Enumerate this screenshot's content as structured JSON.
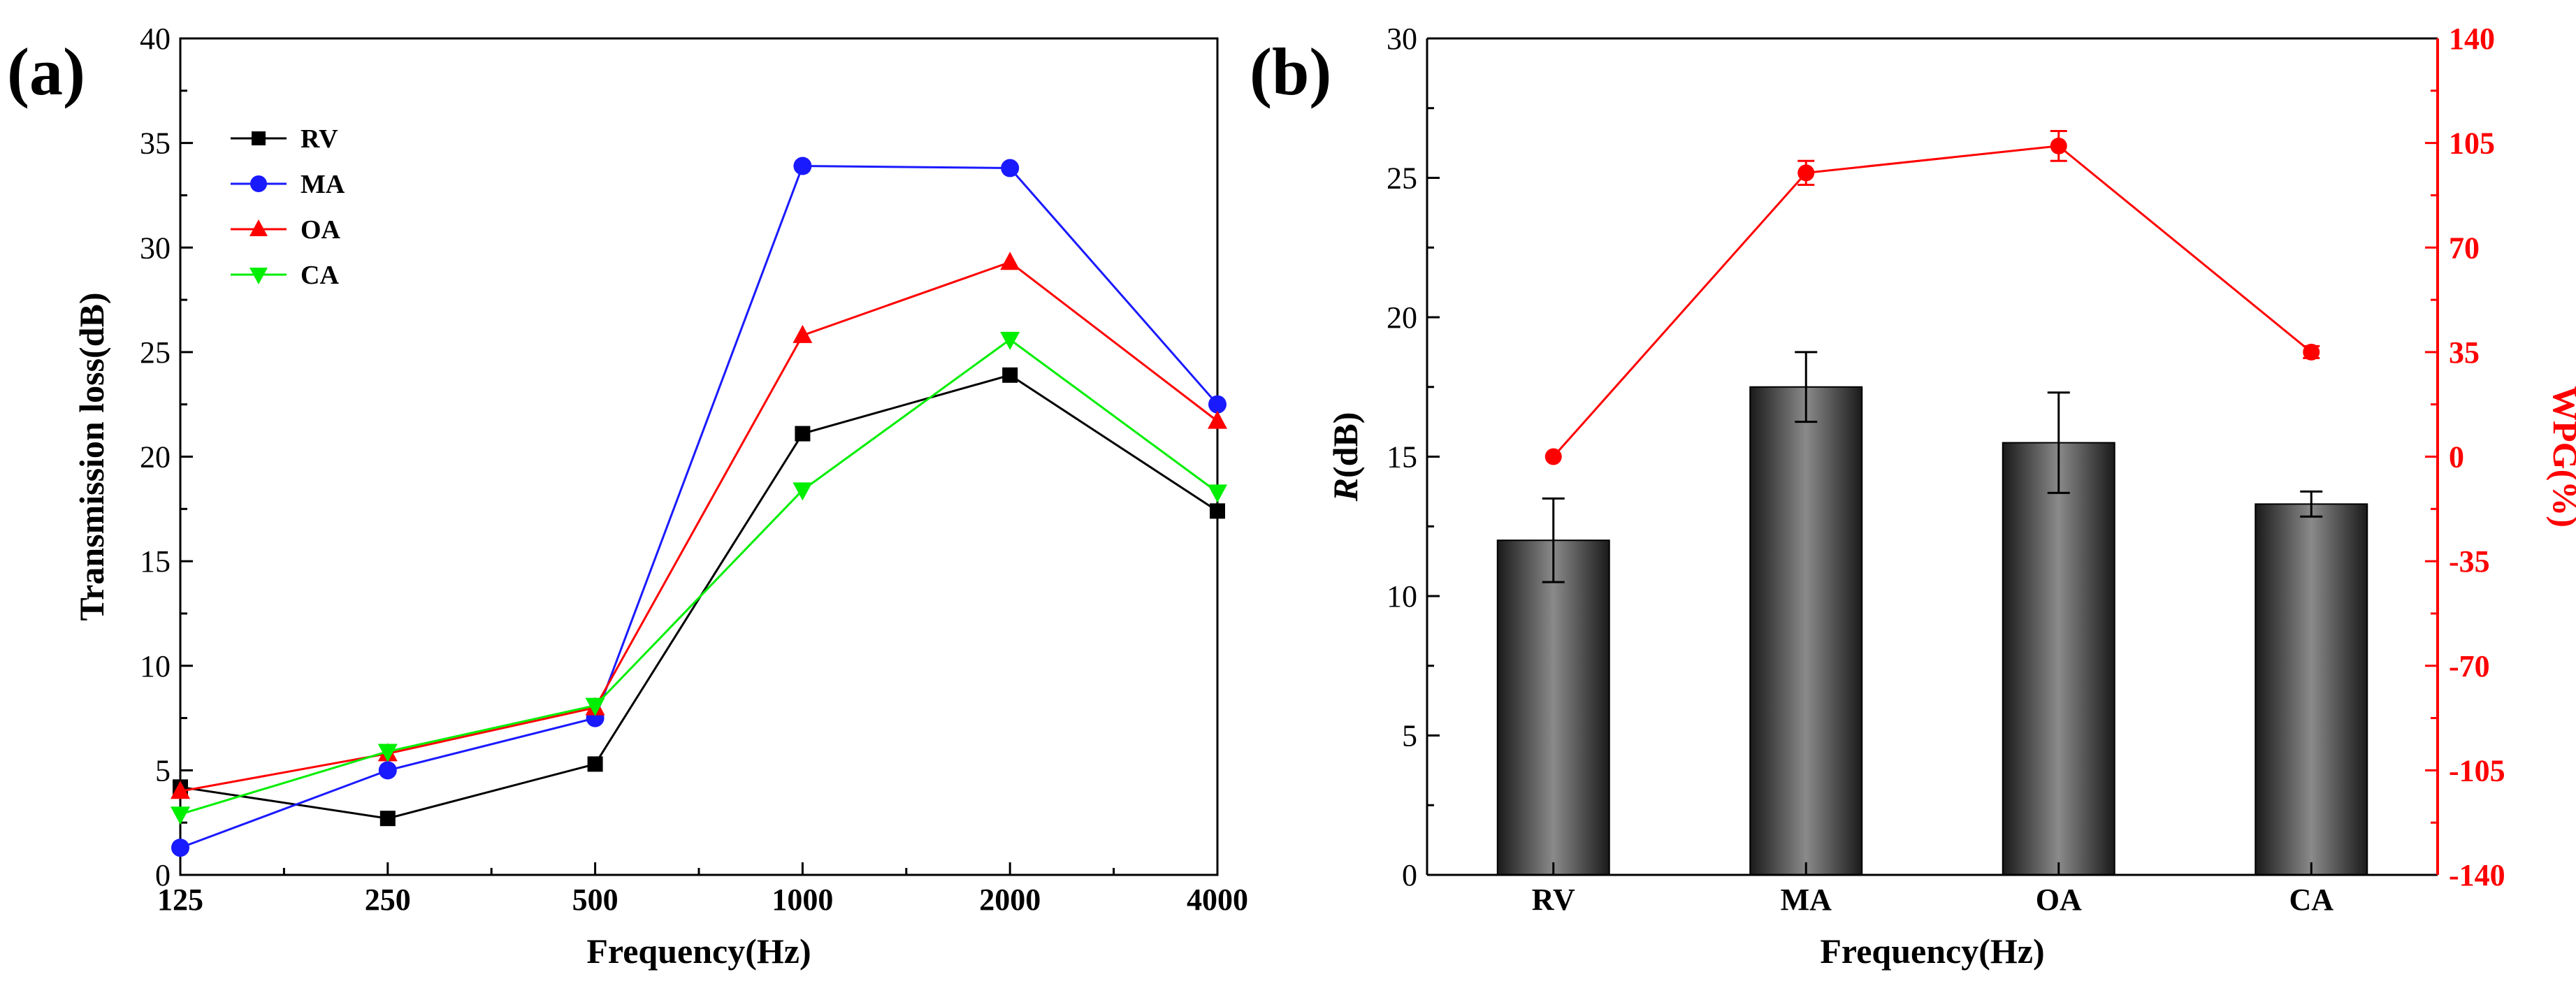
{
  "chart_data": [
    {
      "panel_label": "(a)",
      "type": "line",
      "xscale": "log",
      "categories": [
        "125",
        "250",
        "500",
        "1000",
        "2000",
        "4000"
      ],
      "x": [
        125,
        250,
        500,
        1000,
        2000,
        4000
      ],
      "xlabel": "Frequency(Hz)",
      "ylabel": "Transmission loss(dB)",
      "ylim": [
        0,
        40
      ],
      "yticks": [
        "0",
        "5",
        "10",
        "15",
        "20",
        "25",
        "30",
        "35",
        "40"
      ],
      "legend_position": "top-left",
      "series": [
        {
          "name": "RV",
          "color": "#000000",
          "marker": "square",
          "values": [
            4.2,
            2.7,
            5.3,
            21.1,
            23.9,
            17.4
          ]
        },
        {
          "name": "MA",
          "color": "#1a1aff",
          "marker": "circle",
          "values": [
            1.3,
            5.0,
            7.5,
            33.9,
            33.8,
            22.5
          ]
        },
        {
          "name": "OA",
          "color": "#ff0000",
          "marker": "triangle-up",
          "values": [
            4.0,
            5.8,
            8.0,
            25.8,
            29.3,
            21.7
          ]
        },
        {
          "name": "CA",
          "color": "#00ee00",
          "marker": "triangle-down",
          "values": [
            2.9,
            5.9,
            8.1,
            18.4,
            25.6,
            18.3
          ]
        }
      ]
    },
    {
      "panel_label": "(b)",
      "type": "bar",
      "categories": [
        "RV",
        "MA",
        "OA",
        "CA"
      ],
      "xlabel": "Frequency(Hz)",
      "ylabel_italic": "R",
      "ylabel_rest": "(dB)",
      "ylim": [
        0,
        30
      ],
      "yticks": [
        "0",
        "5",
        "10",
        "15",
        "20",
        "25",
        "30"
      ],
      "bars": {
        "values": [
          12.0,
          17.5,
          15.5,
          13.3
        ],
        "errors": [
          1.5,
          1.25,
          1.8,
          0.45
        ],
        "color": "#2a2a2a"
      },
      "y2label": "WPG(%)",
      "y2lim": [
        -140,
        140
      ],
      "y2ticks": [
        "-140",
        "-105",
        "-70",
        "-35",
        "0",
        "35",
        "70",
        "105",
        "140"
      ],
      "y2color": "#ff0000",
      "line": {
        "values": [
          0,
          95,
          104,
          35
        ],
        "errors": [
          0,
          4,
          5,
          2
        ],
        "color": "#ff0000"
      }
    }
  ]
}
